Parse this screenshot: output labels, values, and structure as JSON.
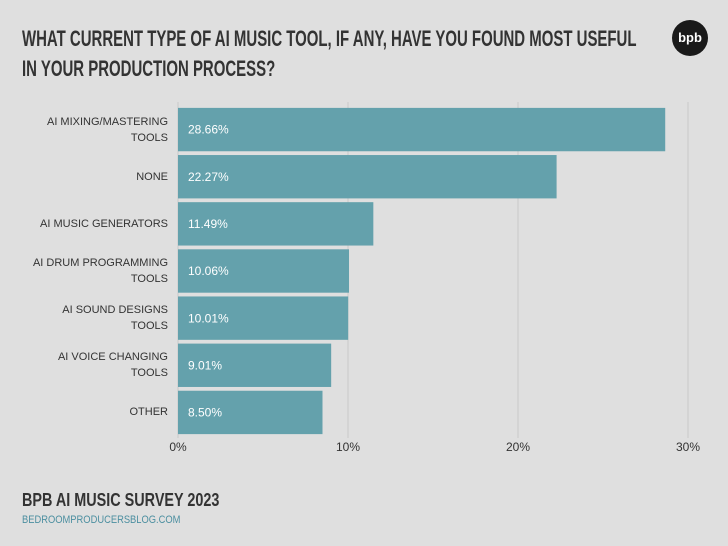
{
  "chart_data": {
    "type": "hbar",
    "title": "WHAT CURRENT TYPE OF AI MUSIC TOOL, IF ANY, HAVE YOU FOUND MOST USEFUL IN YOUR PRODUCTION PROCESS?",
    "logo": "bpb",
    "categories": [
      "AI MIXING/MASTERING TOOLS",
      "NONE",
      "AI MUSIC GENERATORS",
      "AI DRUM PROGRAMMING TOOLS",
      "AI SOUND DESIGNS TOOLS",
      "AI VOICE CHANGING TOOLS",
      "OTHER"
    ],
    "values": [
      28.66,
      22.27,
      11.49,
      10.06,
      10.01,
      9.01,
      8.5
    ],
    "value_labels": [
      "28.66%",
      "22.27%",
      "11.49%",
      "10.06%",
      "10.01%",
      "9.01%",
      "8.50%"
    ],
    "color": "#64a1ac",
    "xlim": [
      0,
      30
    ],
    "xticks": [
      {
        "value": 0,
        "label": "0%"
      },
      {
        "value": 10,
        "label": "10%"
      },
      {
        "value": 20,
        "label": "20%"
      },
      {
        "value": 30,
        "label": "30%"
      }
    ],
    "grid": true,
    "footer_title": "BPB AI MUSIC SURVEY 2023",
    "footer_source": "BEDROOMPRODUCERSBLOG.COM"
  }
}
